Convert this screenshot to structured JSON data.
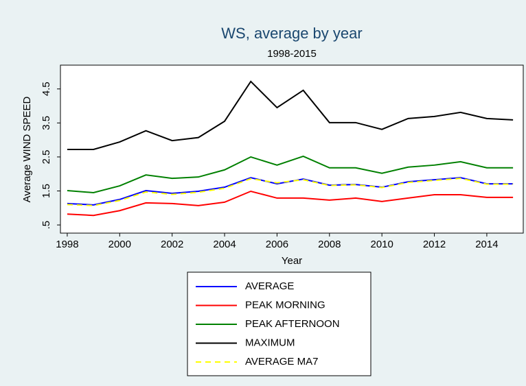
{
  "chart_data": {
    "type": "line",
    "title": "WS, average by year",
    "subtitle": "1998-2015",
    "xlabel": "Year",
    "ylabel": "Average WIND SPEED",
    "x": [
      1998,
      1999,
      2000,
      2001,
      2002,
      2003,
      2004,
      2005,
      2006,
      2007,
      2008,
      2009,
      2010,
      2011,
      2012,
      2013,
      2014,
      2015
    ],
    "xlim": [
      1997.74,
      2015.39
    ],
    "xticks": [
      1998,
      2000,
      2002,
      2004,
      2006,
      2008,
      2010,
      2012,
      2014
    ],
    "ylim": [
      0.26,
      5.2
    ],
    "yticks": [
      {
        "value": 0.5,
        "label": ".5"
      },
      1.5,
      2.5,
      3.5,
      4.5
    ],
    "series": [
      {
        "name": "AVERAGE",
        "color": "#0000ff",
        "values": [
          1.13,
          1.09,
          1.25,
          1.51,
          1.43,
          1.49,
          1.61,
          1.89,
          1.71,
          1.85,
          1.67,
          1.69,
          1.61,
          1.77,
          1.83,
          1.89,
          1.71,
          1.71
        ]
      },
      {
        "name": "PEAK MORNING",
        "color": "#ff0000",
        "values": [
          0.82,
          0.78,
          0.92,
          1.15,
          1.13,
          1.07,
          1.17,
          1.49,
          1.29,
          1.29,
          1.23,
          1.29,
          1.19,
          1.29,
          1.39,
          1.39,
          1.31,
          1.31
        ]
      },
      {
        "name": "PEAK AFTERNOON",
        "color": "#008000",
        "values": [
          1.51,
          1.45,
          1.65,
          1.97,
          1.87,
          1.91,
          2.12,
          2.5,
          2.26,
          2.52,
          2.18,
          2.18,
          2.02,
          2.2,
          2.26,
          2.36,
          2.18,
          2.18
        ]
      },
      {
        "name": "MAXIMUM",
        "color": "#000000",
        "values": [
          2.72,
          2.72,
          2.94,
          3.27,
          2.98,
          3.07,
          3.55,
          4.72,
          3.95,
          4.46,
          3.51,
          3.51,
          3.31,
          3.63,
          3.69,
          3.81,
          3.63,
          3.59
        ]
      },
      {
        "name": "AVERAGE MA7",
        "color": "#ffff00",
        "dashed": true,
        "values": [
          1.1,
          1.07,
          1.22,
          1.47,
          1.4,
          1.46,
          1.58,
          1.86,
          1.74,
          1.83,
          1.66,
          1.68,
          1.6,
          1.75,
          1.81,
          1.87,
          1.7,
          1.7
        ]
      }
    ]
  }
}
